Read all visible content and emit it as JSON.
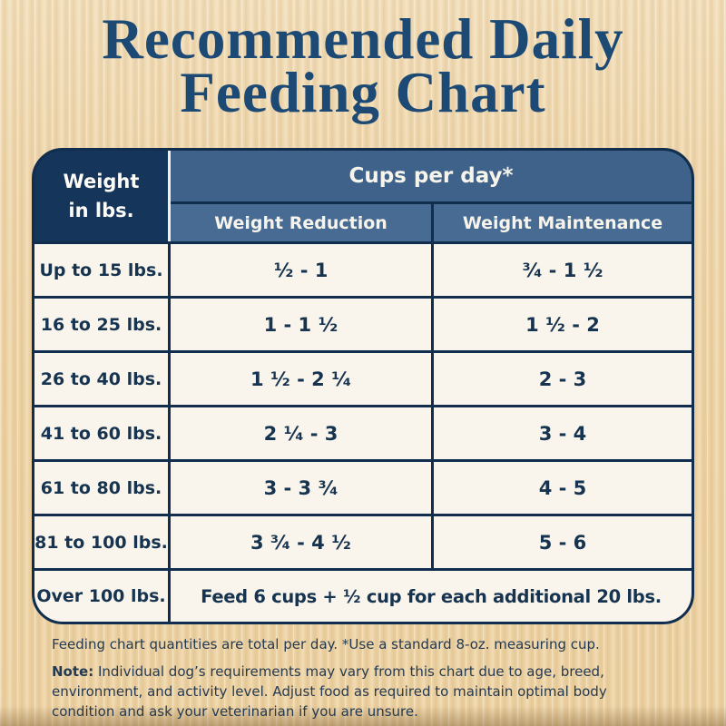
{
  "title": {
    "line1": "Recommended Daily",
    "line2": "Feeding Chart"
  },
  "table": {
    "corner": {
      "line1": "Weight",
      "line2": "in lbs."
    },
    "group_header": "Cups per day*",
    "subheaders": [
      "Weight Reduction",
      "Weight Maintenance"
    ],
    "rows": [
      {
        "weight": "Up to 15 lbs.",
        "reduction": "¹⁄₂ - 1",
        "maintenance": "³⁄₄ - 1 ¹⁄₂"
      },
      {
        "weight": "16 to 25 lbs.",
        "reduction": "1 - 1 ¹⁄₂",
        "maintenance": "1 ¹⁄₂ - 2"
      },
      {
        "weight": "26 to 40 lbs.",
        "reduction": "1 ¹⁄₂ - 2 ¹⁄₄",
        "maintenance": "2 - 3"
      },
      {
        "weight": "41 to 60 lbs.",
        "reduction": "2 ¹⁄₄ - 3",
        "maintenance": "3 - 4"
      },
      {
        "weight": "61 to 80 lbs.",
        "reduction": "3 - 3 ³⁄₄",
        "maintenance": "4 - 5"
      },
      {
        "weight": "81 to 100 lbs.",
        "reduction": "3 ³⁄₄ - 4 ¹⁄₂",
        "maintenance": "5 - 6"
      }
    ],
    "last_row": {
      "weight": "Over 100 lbs.",
      "text": "Feed 6 cups + ¹⁄₂ cup for each additional 20 lbs."
    }
  },
  "footnotes": {
    "per_day_note": "Feeding chart quantities are total per day. *Use a standard 8-oz. measuring cup.",
    "note_label": "Note:",
    "note_lines": [
      " Individual dog’s requirements may vary from this chart due to age, breed,",
      "environment, and activity level. Adjust food as required to maintain optimal body",
      "condition and ask your veterinarian if you are unsure."
    ]
  },
  "colors": {
    "background_wood": "#eed3a6",
    "navy_border": "#112e4e",
    "corner_cell_navy": "#16355b",
    "group_header_blue": "#3e6289",
    "subheader_blue": "#476b92",
    "cell_cream": "#faf5ec",
    "title_navy": "#1c4a74",
    "cell_text_navy": "#16334f",
    "footer_text": "#243a52"
  },
  "chart_data": {
    "type": "table",
    "title": "Recommended Daily Feeding Chart",
    "columns": [
      "Weight in lbs.",
      "Cups per day* - Weight Reduction",
      "Cups per day* - Weight Maintenance"
    ],
    "rows": [
      [
        "Up to 15 lbs.",
        "1/2 - 1",
        "3/4 - 1 1/2"
      ],
      [
        "16 to 25 lbs.",
        "1 - 1 1/2",
        "1 1/2 - 2"
      ],
      [
        "26 to 40 lbs.",
        "1 1/2 - 2 1/4",
        "2 - 3"
      ],
      [
        "41 to 60 lbs.",
        "2 1/4 - 3",
        "3 - 4"
      ],
      [
        "61 to 80 lbs.",
        "3 - 3 3/4",
        "4 - 5"
      ],
      [
        "81 to 100 lbs.",
        "3 3/4 - 4 1/2",
        "5 - 6"
      ],
      [
        "Over 100 lbs.",
        "Feed 6 cups + 1/2 cup for each additional 20 lbs.",
        "Feed 6 cups + 1/2 cup for each additional 20 lbs."
      ]
    ],
    "footnote": "Feeding chart quantities are total per day. *Use a standard 8-oz. measuring cup."
  }
}
